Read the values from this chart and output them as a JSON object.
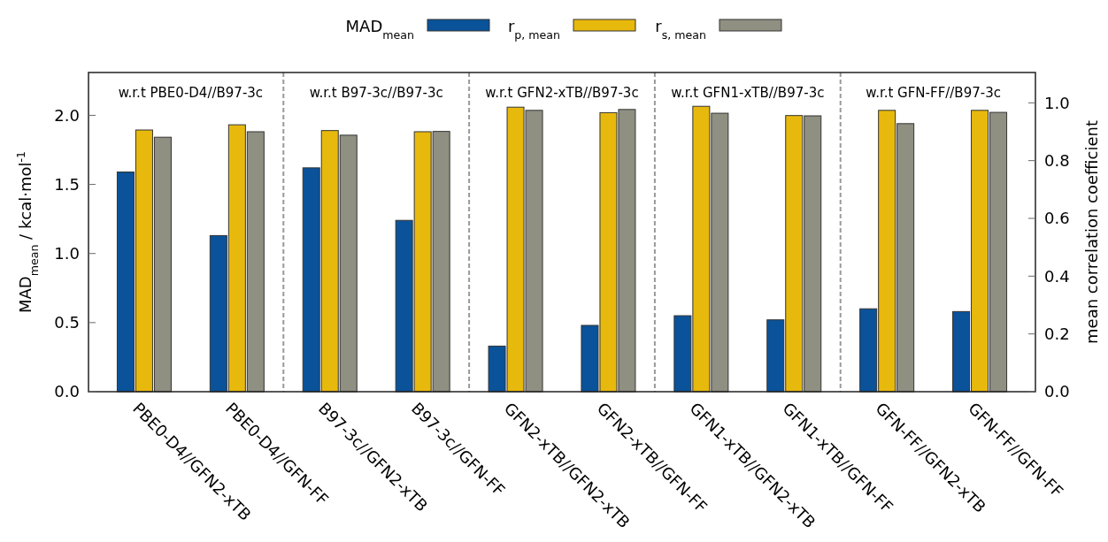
{
  "chart_data": {
    "type": "bar",
    "categories": [
      "PBE0-D4//GFN2-xTB",
      "PBE0-D4//GFN-FF",
      "B97-3c//GFN2-xTB",
      "B97-3c//GFN-FF",
      "GFN2-xTB//GFN2-xTB",
      "GFN2-xTB//GFN-FF",
      "GFN1-xTB//GFN2-xTB",
      "GFN1-xTB//GFN-FF",
      "GFN-FF//GFN2-xTB",
      "GFN-FF//GFN-FF"
    ],
    "series": [
      {
        "name": "MAD$_{mean}$",
        "color": "#0a5299",
        "values": [
          1.59,
          1.13,
          1.62,
          1.24,
          0.33,
          0.48,
          0.55,
          0.52,
          0.6,
          0.58
        ]
      },
      {
        "name": "r$_{p, mean}$",
        "color": "#e8b90d",
        "axis": "y2",
        "values": [
          0.906,
          0.924,
          0.904,
          0.9,
          0.985,
          0.966,
          0.988,
          0.956,
          0.974,
          0.974
        ]
      },
      {
        "name": "r$_{s, mean}$",
        "color": "#8f8f82",
        "axis": "y2",
        "values": [
          0.881,
          0.9,
          0.888,
          0.901,
          0.974,
          0.977,
          0.964,
          0.955,
          0.928,
          0.967
        ]
      }
    ],
    "ylabel": "MAD$_{mean}$ / kcal·mol$^{-1}$",
    "y2label": "mean correlation coefficient",
    "ylim": [
      0,
      2.31
    ],
    "yticks": [
      {
        "value": 0,
        "label": "0.0"
      },
      {
        "value": 0.5,
        "label": "0.5"
      },
      {
        "value": 1,
        "label": "1.0"
      },
      {
        "value": 1.5,
        "label": "1.5"
      },
      {
        "value": 2,
        "label": "2.0"
      }
    ],
    "y2lim": [
      0,
      1.105
    ],
    "y2ticks": [
      {
        "value": 0,
        "label": "0.0"
      },
      {
        "value": 0.2,
        "label": "0.2"
      },
      {
        "value": 0.4,
        "label": "0.4"
      },
      {
        "value": 0.6,
        "label": "0.6"
      },
      {
        "value": 0.8,
        "label": "0.8"
      },
      {
        "value": 1,
        "label": "1.0"
      }
    ],
    "annotations": [
      "w.r.t PBE0-D4//B97-3c",
      "w.r.t B97-3c//B97-3c",
      "w.r.t GFN2-xTB//B97-3c",
      "w.r.t GFN1-xTB//B97-3c",
      "w.r.t GFN-FF//B97-3c"
    ],
    "legend": "top",
    "grid": false
  }
}
